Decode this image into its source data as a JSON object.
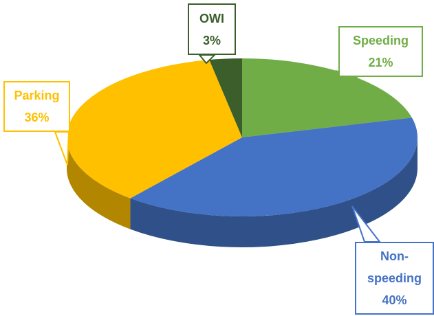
{
  "chart_data": {
    "type": "pie",
    "categories": [
      "Speeding",
      "Non-speeding",
      "Parking",
      "OWI"
    ],
    "values": [
      21,
      40,
      36,
      3
    ],
    "value_labels": [
      "21%",
      "40%",
      "36%",
      "3%"
    ],
    "colors": [
      "#70ad47",
      "#4472c4",
      "#ffc000",
      "#3b5e2b"
    ]
  }
}
